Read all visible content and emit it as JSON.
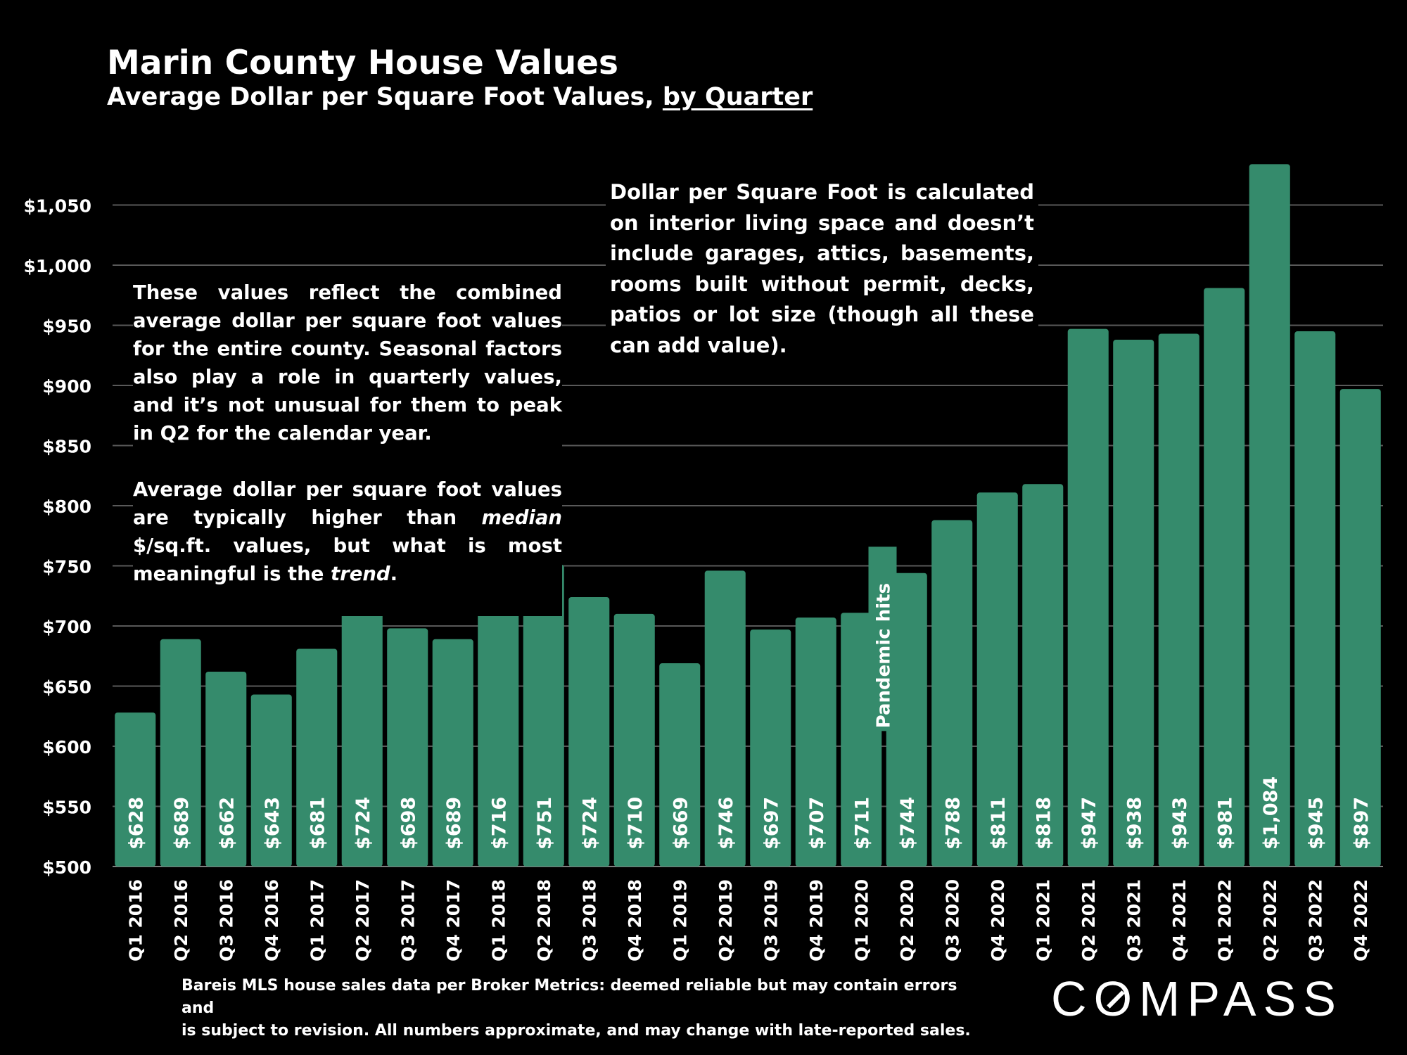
{
  "header": {
    "title": "Marin County House Values",
    "subtitle_prefix": "Average Dollar per Square Foot Values, ",
    "subtitle_link": "by Quarter"
  },
  "notes": {
    "left_para1": "These values reflect the combined average dollar per square foot values for the entire county. Seasonal factors also play a role in quarterly values, and it’s not unusual for them to peak in Q2 for the calendar year.",
    "left_para2_a": "Average dollar per square foot values are typically higher than ",
    "left_para2_em1": "median",
    "left_para2_b": " $/sq.ft. values, but what is most meaningful is the ",
    "left_para2_em2": "trend",
    "left_para2_c": ".",
    "right": "Dollar per Square Foot is calculated on interior living space and doesn’t include garages, attics, basements, rooms built without permit, decks, patios or lot size (though all these can add value)."
  },
  "footer": {
    "source_line1": "Bareis MLS house sales data per Broker Metrics:  deemed reliable but may contain errors and",
    "source_line2": "is subject to revision. All numbers approximate, and may change with late-reported sales.",
    "brand_a": "C",
    "brand_o": "O",
    "brand_b": "MPASS"
  },
  "colors": {
    "background": "#000000",
    "bar": "#358b6c",
    "grid": "#595959",
    "text": "#ffffff"
  },
  "chart_data": {
    "type": "bar",
    "title": "Marin County House Values",
    "subtitle": "Average Dollar per Square Foot Values, by Quarter",
    "xlabel": "",
    "ylabel": "",
    "ylim": [
      500,
      1100
    ],
    "grid": true,
    "y_ticks": [
      500,
      550,
      600,
      650,
      700,
      750,
      800,
      850,
      900,
      950,
      1000,
      1050
    ],
    "y_tick_labels": [
      "$500",
      "$550",
      "$600",
      "$650",
      "$700",
      "$750",
      "$800",
      "$850",
      "$900",
      "$950",
      "$1,000",
      "$1,050"
    ],
    "categories": [
      "Q1 2016",
      "Q2 2016",
      "Q3 2016",
      "Q4 2016",
      "Q1 2017",
      "Q2 2017",
      "Q3 2017",
      "Q4 2017",
      "Q1 2018",
      "Q2 2018",
      "Q3 2018",
      "Q4 2018",
      "Q1 2019",
      "Q2 2019",
      "Q3 2019",
      "Q4 2019",
      "Q1 2020",
      "Q2 2020",
      "Q3 2020",
      "Q4 2020",
      "Q1 2021",
      "Q2 2021",
      "Q3 2021",
      "Q4 2021",
      "Q1 2022",
      "Q2 2022",
      "Q3 2022",
      "Q4 2022"
    ],
    "values": [
      628,
      689,
      662,
      643,
      681,
      724,
      698,
      689,
      716,
      751,
      724,
      710,
      669,
      746,
      697,
      707,
      711,
      744,
      788,
      811,
      818,
      947,
      938,
      943,
      981,
      1084,
      945,
      897
    ],
    "data_labels": [
      "$628",
      "$689",
      "$662",
      "$643",
      "$681",
      "$724",
      "$698",
      "$689",
      "$716",
      "$751",
      "$724",
      "$710",
      "$669",
      "$746",
      "$697",
      "$707",
      "$711",
      "$744",
      "$788",
      "$811",
      "$818",
      "$947",
      "$938",
      "$943",
      "$981",
      "$1,084",
      "$945",
      "$897"
    ],
    "annotations": [
      {
        "text": "Pandemic hits",
        "category": "Q2 2020",
        "at_value": 615
      }
    ]
  }
}
